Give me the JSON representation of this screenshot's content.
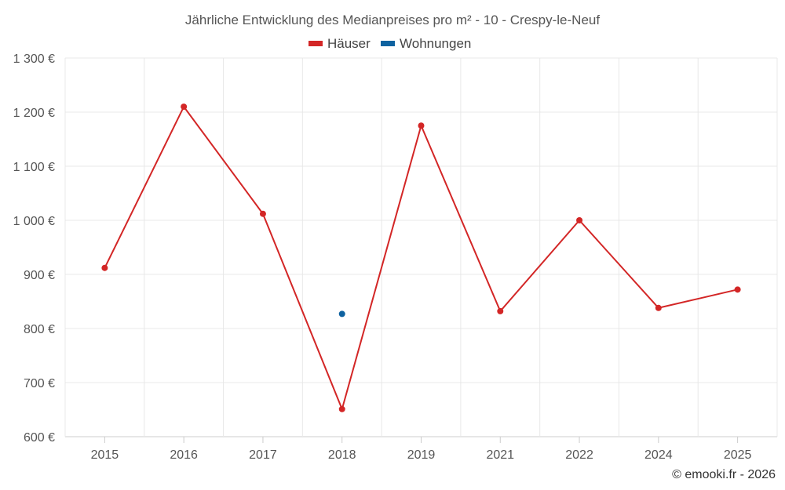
{
  "chart_data": {
    "type": "line",
    "title": "Jährliche Entwicklung des Medianpreises pro m² - 10 - Crespy-le-Neuf",
    "categories": [
      "2015",
      "2016",
      "2017",
      "2018",
      "2019",
      "2021",
      "2022",
      "2024",
      "2025"
    ],
    "series": [
      {
        "name": "Häuser",
        "color": "#d32626",
        "values": [
          912,
          1210,
          1012,
          651,
          1175,
          832,
          1000,
          838,
          872
        ]
      },
      {
        "name": "Wohnungen",
        "color": "#0e62a0",
        "values": [
          null,
          null,
          null,
          827,
          null,
          null,
          null,
          null,
          null
        ]
      }
    ],
    "y_ticks": [
      "600 €",
      "700 €",
      "800 €",
      "900 €",
      "1 000 €",
      "1 100 €",
      "1 200 €",
      "1 300 €"
    ],
    "ylim": [
      600,
      1300
    ],
    "grid": true,
    "legend_position": "top-center"
  },
  "credit": "© emooki.fr - 2026"
}
